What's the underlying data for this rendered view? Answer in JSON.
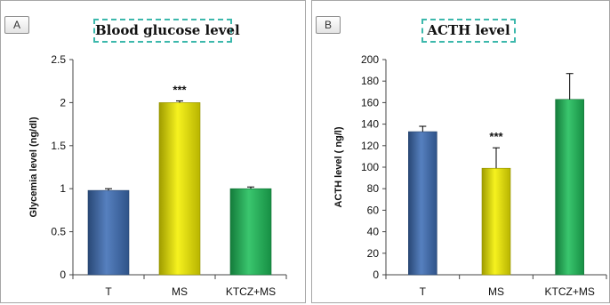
{
  "chart_data": [
    {
      "type": "bar",
      "panel_label": "A",
      "title": "Blood glucose level",
      "xlabel": "",
      "ylabel": "Glycemia level (ng/dl)",
      "categories": [
        "T",
        "MS",
        "KTCZ+MS"
      ],
      "values": [
        0.98,
        2.0,
        1.0
      ],
      "error": [
        0.02,
        0.02,
        0.02
      ],
      "annotations": [
        "",
        "***",
        ""
      ],
      "colors": [
        "#3f6fb6",
        "#f5f000",
        "#1fbe5a"
      ],
      "ylim": [
        0,
        2.5
      ],
      "yticks": [
        0,
        0.5,
        1,
        1.5,
        2,
        2.5
      ],
      "ytick_labels": [
        "0",
        "0.5",
        "1",
        "1.5",
        "2",
        "2.5"
      ],
      "grid": false,
      "legend": "none"
    },
    {
      "type": "bar",
      "panel_label": "B",
      "title": "ACTH level",
      "xlabel": "",
      "ylabel": "ACTH level ( ng/l)",
      "categories": [
        "T",
        "MS",
        "KTCZ+MS"
      ],
      "values": [
        133,
        99,
        163
      ],
      "error": [
        5,
        19,
        24
      ],
      "annotations": [
        "",
        "***",
        ""
      ],
      "colors": [
        "#3f6fb6",
        "#f5f000",
        "#1fbe5a"
      ],
      "ylim": [
        0,
        200
      ],
      "yticks": [
        0,
        20,
        40,
        60,
        80,
        100,
        120,
        140,
        160,
        180,
        200
      ],
      "ytick_labels": [
        "0",
        "20",
        "40",
        "60",
        "80",
        "100",
        "120",
        "140",
        "160",
        "180",
        "200"
      ],
      "grid": false,
      "legend": "none"
    }
  ]
}
